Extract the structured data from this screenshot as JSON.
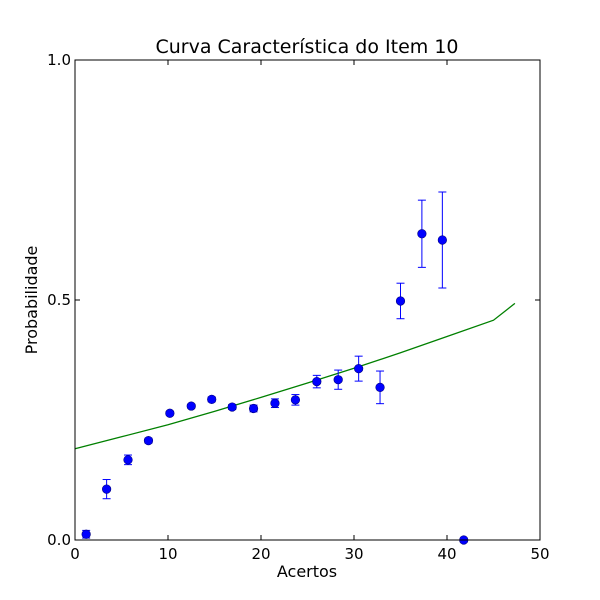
{
  "chart_data": {
    "type": "scatter",
    "title": "Curva Característica do Item 10",
    "xlabel": "Acertos",
    "ylabel": "Probabilidade",
    "xlim": [
      0,
      50
    ],
    "ylim": [
      0,
      1
    ],
    "xticks": [
      "0",
      "10",
      "20",
      "30",
      "40",
      "50"
    ],
    "yticks": [
      "0.0",
      "0.5",
      "1.0"
    ],
    "grid": false,
    "legend": "none",
    "series": [
      {
        "kind": "points-with-error-bars",
        "color": "#0000ff",
        "points": [
          {
            "x": 1.2,
            "y": 0.012,
            "err": 0.008
          },
          {
            "x": 3.4,
            "y": 0.106,
            "err": 0.02
          },
          {
            "x": 5.7,
            "y": 0.167,
            "err": 0.01
          },
          {
            "x": 7.9,
            "y": 0.207,
            "err": 0.005
          },
          {
            "x": 10.2,
            "y": 0.264,
            "err": 0.004
          },
          {
            "x": 12.5,
            "y": 0.279,
            "err": 0.004
          },
          {
            "x": 14.7,
            "y": 0.293,
            "err": 0.005
          },
          {
            "x": 16.9,
            "y": 0.277,
            "err": 0.005
          },
          {
            "x": 19.2,
            "y": 0.274,
            "err": 0.007
          },
          {
            "x": 21.5,
            "y": 0.285,
            "err": 0.009
          },
          {
            "x": 23.7,
            "y": 0.292,
            "err": 0.011
          },
          {
            "x": 26.0,
            "y": 0.33,
            "err": 0.013
          },
          {
            "x": 28.3,
            "y": 0.334,
            "err": 0.02
          },
          {
            "x": 30.5,
            "y": 0.357,
            "err": 0.026
          },
          {
            "x": 32.8,
            "y": 0.318,
            "err": 0.034
          },
          {
            "x": 35.0,
            "y": 0.498,
            "err": 0.037
          },
          {
            "x": 37.3,
            "y": 0.638,
            "err": 0.07
          },
          {
            "x": 39.5,
            "y": 0.625,
            "err": 0.1
          },
          {
            "x": 41.8,
            "y": 0.0,
            "err": 0.0
          }
        ]
      },
      {
        "kind": "fitted-curve",
        "color": "#008000",
        "x": [
          0,
          5,
          10,
          15,
          20,
          25,
          30,
          35,
          40,
          45,
          47.3
        ],
        "y": [
          0.19,
          0.215,
          0.24,
          0.268,
          0.297,
          0.327,
          0.358,
          0.39,
          0.424,
          0.458,
          0.493
        ]
      }
    ]
  }
}
